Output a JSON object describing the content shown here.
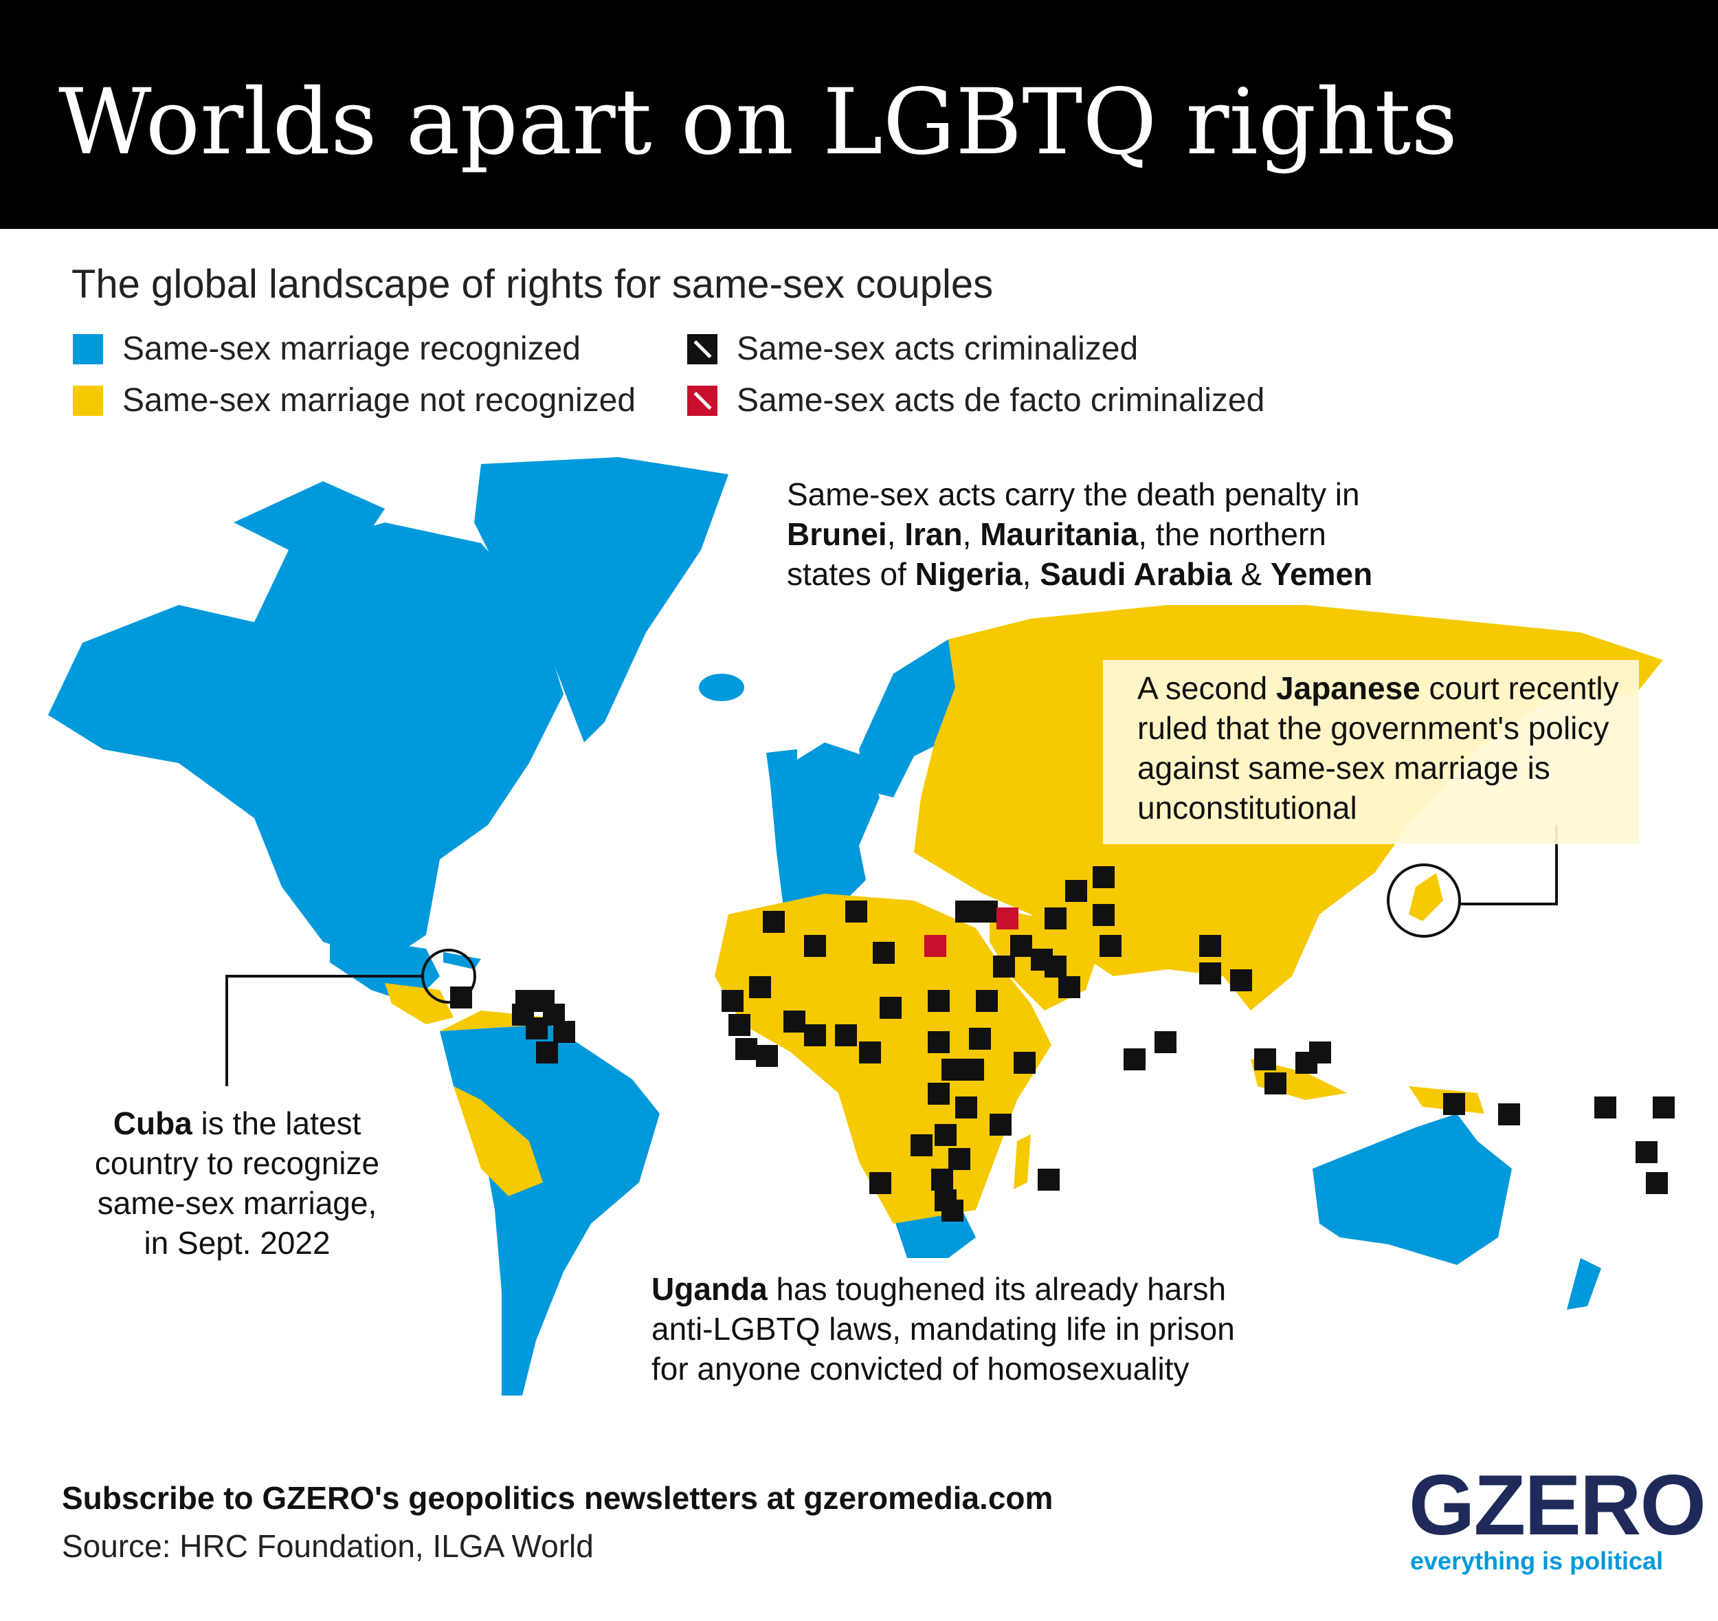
{
  "header": {
    "title": "Worlds apart on LGBTQ rights"
  },
  "subtitle": "The global landscape of rights for same-sex couples",
  "legend": {
    "recognized": {
      "label": "Same-sex marriage recognized",
      "color": "#0099db"
    },
    "not_recognized": {
      "label": "Same-sex marriage not recognized",
      "color": "#f7c900"
    },
    "criminalized": {
      "label": "Same-sex acts criminalized",
      "color": "#111111"
    },
    "de_facto": {
      "label": "Same-sex acts de facto criminalized",
      "color": "#c8102e"
    }
  },
  "annotations": {
    "death_penalty": {
      "line1": "Same-sex acts carry the death penalty in",
      "brunei": "Brunei",
      "iran": "Iran",
      "mauritania": "Mauritania",
      "northern_states": "the northern",
      "states_of": "states of",
      "nigeria": "Nigeria",
      "saudi": "Saudi Arabia",
      "yemen": "Yemen"
    },
    "japan": {
      "prefix": "A second",
      "bold": "Japanese",
      "rest1": "court recently",
      "line2": "ruled that the government's policy",
      "line3": "against same-sex marriage is",
      "line4": "unconstitutional"
    },
    "cuba": {
      "bold": "Cuba",
      "rest1": "is the latest",
      "line2": "country to recognize",
      "line3": "same-sex marriage,",
      "line4": "in Sept. 2022"
    },
    "uganda": {
      "bold": "Uganda",
      "rest1": "has toughened its already harsh",
      "line2": "anti-LGBTQ laws, mandating life in prison",
      "line3": "for anyone convicted of homosexuality"
    }
  },
  "footer": {
    "subscribe": "Subscribe to GZERO's geopolitics newsletters at gzeromedia.com",
    "source": "Source: HRC Foundation, ILGA World"
  },
  "logo": {
    "name": "GZERO",
    "tagline": "everything is political"
  }
}
